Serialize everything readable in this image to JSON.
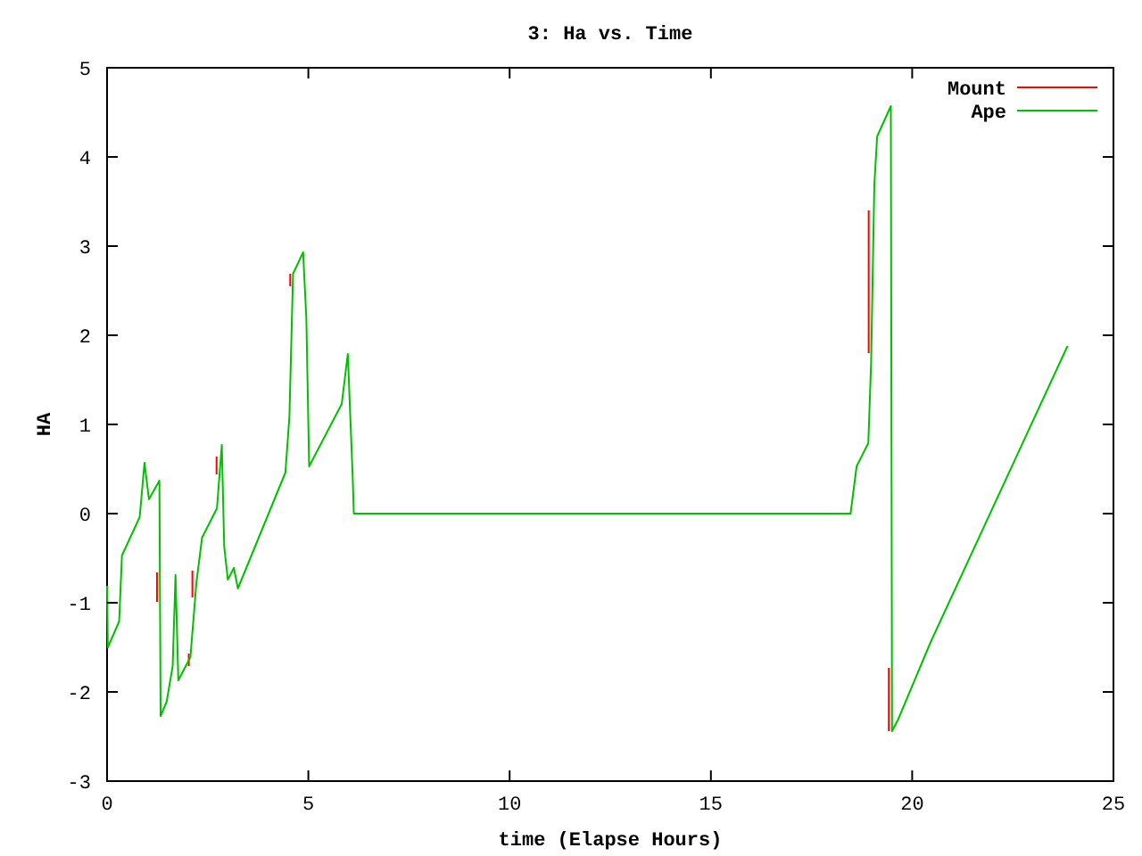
{
  "chart_data": {
    "type": "line",
    "title": "3: Ha vs. Time",
    "xlabel": "time (Elapse Hours)",
    "ylabel": "HA",
    "xlim": [
      0,
      25
    ],
    "ylim": [
      -3,
      5
    ],
    "xticks": [
      0,
      5,
      10,
      15,
      20,
      25
    ],
    "yticks": [
      -3,
      -2,
      -1,
      0,
      1,
      2,
      3,
      4,
      5
    ],
    "grid": false,
    "legend": "top right",
    "line_style": "solid",
    "marker": "none",
    "series": [
      {
        "name": "Mount",
        "color": "#ff0000",
        "x": [
          1.24,
          1.24,
          1.25,
          2.03,
          2.03,
          2.04,
          2.12,
          2.12,
          2.13,
          2.72,
          2.72,
          2.73,
          4.55,
          4.55,
          4.56,
          18.92,
          18.92,
          18.93,
          19.42,
          19.42
        ],
        "values": [
          -0.66,
          -0.99,
          null,
          -1.57,
          -1.71,
          null,
          -0.64,
          -0.94,
          null,
          0.44,
          0.64,
          null,
          2.55,
          2.69,
          null,
          1.8,
          3.4,
          null,
          -1.73,
          -2.44
        ]
      },
      {
        "name": "Ape",
        "color": "#00c000",
        "x": [
          0,
          0.02,
          0.3,
          0.37,
          0.81,
          0.93,
          1.04,
          1.3,
          1.33,
          1.48,
          1.63,
          1.7,
          1.77,
          2.07,
          2.22,
          2.36,
          2.73,
          2.85,
          2.91,
          3.0,
          3.15,
          3.25,
          4.43,
          4.53,
          4.62,
          4.87,
          4.95,
          5.02,
          5.83,
          5.98,
          6.1,
          6.13,
          18.47,
          18.62,
          18.91,
          18.98,
          19.06,
          19.13,
          19.47,
          19.5,
          19.65,
          20.46,
          23.86
        ],
        "values": [
          -0.81,
          -1.5,
          -1.21,
          -0.47,
          -0.04,
          0.57,
          0.16,
          0.37,
          -2.27,
          -2.11,
          -1.71,
          -0.69,
          -1.87,
          -1.61,
          -0.77,
          -0.27,
          0.06,
          0.77,
          -0.37,
          -0.74,
          -0.61,
          -0.84,
          0.46,
          1.09,
          2.69,
          2.93,
          2.19,
          0.53,
          1.23,
          1.79,
          0.43,
          0,
          0,
          0.53,
          0.79,
          1.69,
          3.69,
          4.23,
          4.57,
          -2.44,
          -2.31,
          -1.44,
          1.88
        ]
      }
    ]
  }
}
